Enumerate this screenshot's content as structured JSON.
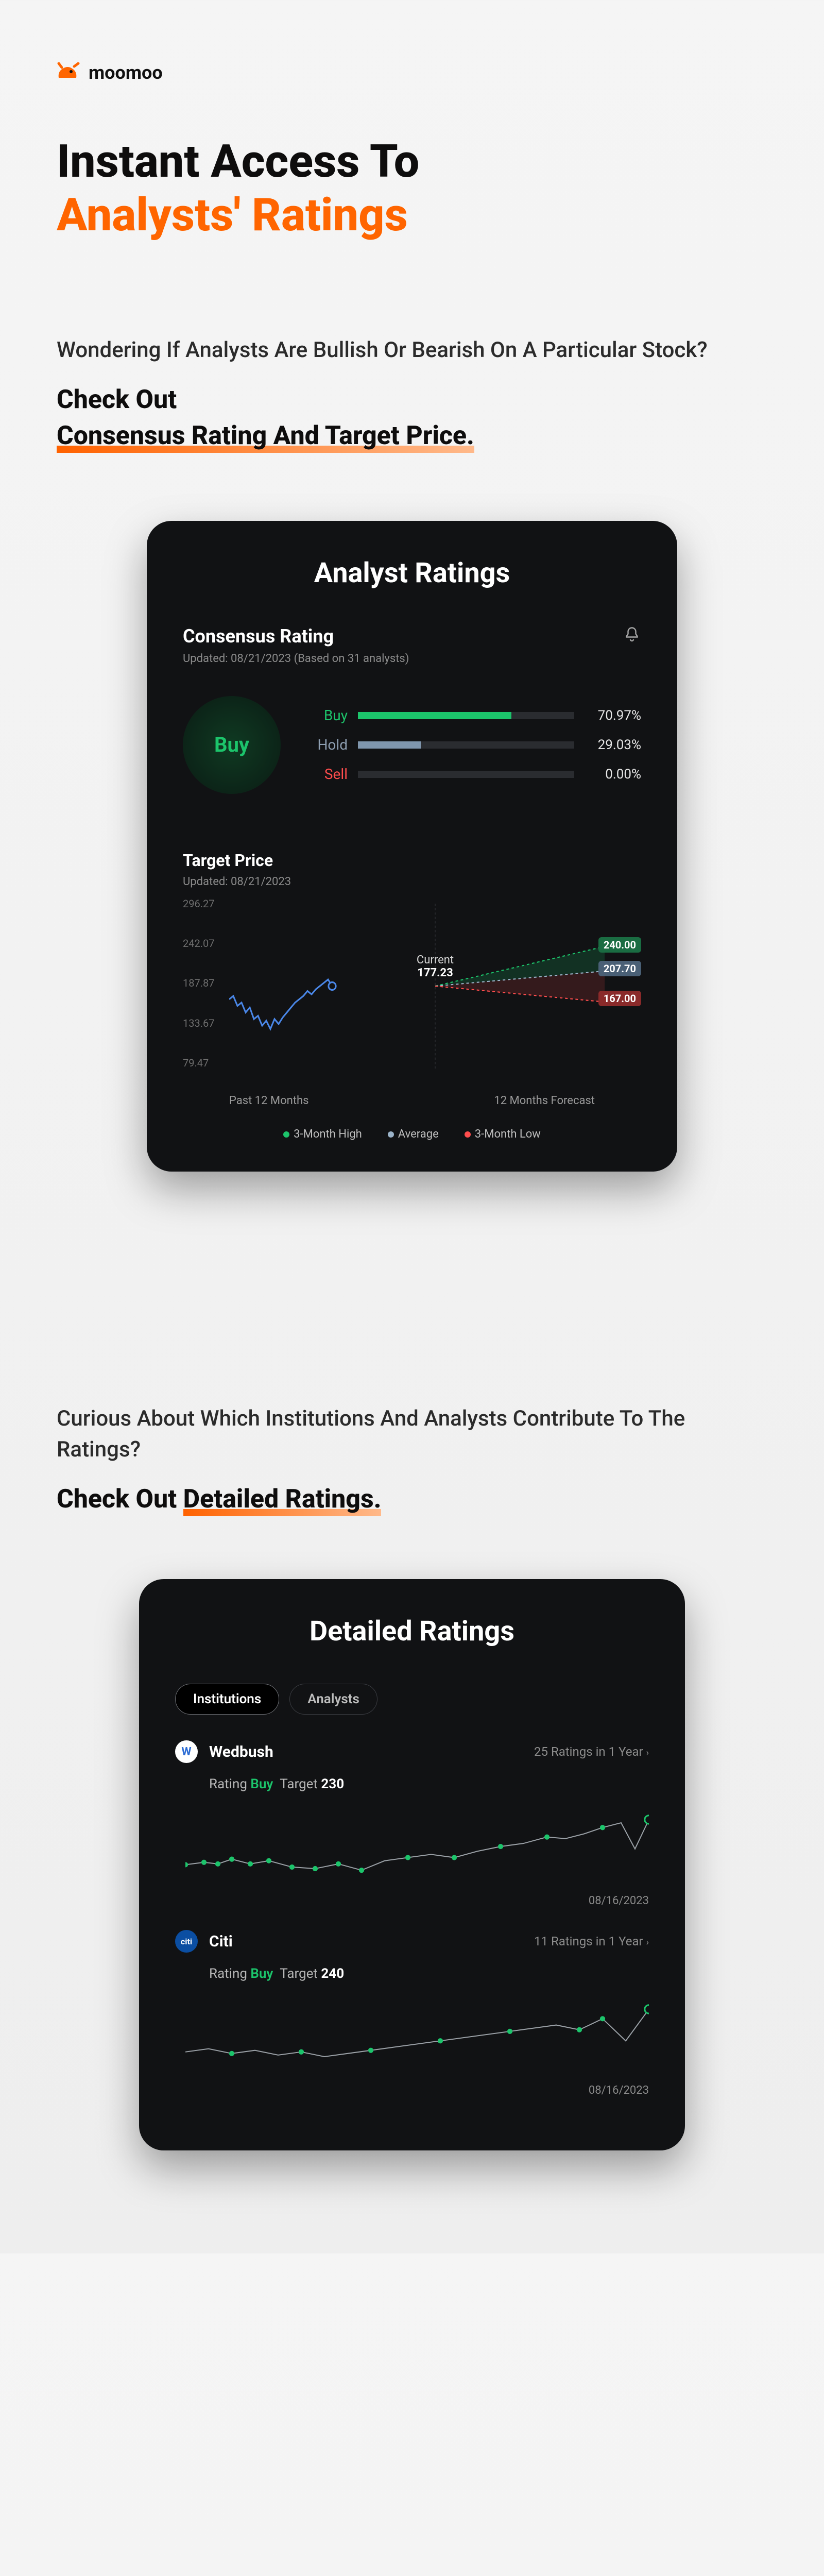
{
  "brand": {
    "name": "moomoo",
    "logo_color": "#ff6500"
  },
  "hero": {
    "line1": "Instant Access To",
    "line2": "Analysts' Ratings",
    "accent_color": "#ff6500"
  },
  "section1": {
    "lead": "Wondering If Analysts Are Bullish Or Bearish On A Particular Stock?",
    "checkout_prefix": "Check Out",
    "checkout_underlined": "Consensus Rating And Target Price."
  },
  "analyst_card": {
    "title": "Analyst Ratings",
    "consensus": {
      "heading": "Consensus Rating",
      "updated": "Updated: 08/21/2023 (Based on  31 analysts)",
      "badge": "Buy",
      "badge_color": "#1cc46b",
      "rows": [
        {
          "label": "Buy",
          "pct": 70.97,
          "pct_str": "70.97%",
          "color": "#1cc46b",
          "label_class": "lbl-buy"
        },
        {
          "label": "Hold",
          "pct": 29.03,
          "pct_str": "29.03%",
          "color": "#7f96ad",
          "label_class": "lbl-hold"
        },
        {
          "label": "Sell",
          "pct": 0.0,
          "pct_str": "0.00%",
          "color": "#ff4d4d",
          "label_class": "lbl-sell"
        }
      ]
    },
    "target": {
      "heading": "Target Price",
      "updated": "Updated: 08/21/2023",
      "y_ticks": [
        "296.27",
        "242.07",
        "187.87",
        "133.67",
        "79.47"
      ],
      "current_label": "Current",
      "current_value": "177.23",
      "forecast": {
        "high": {
          "value": "240.00",
          "color": "#1cc46b",
          "bg": "#1a6c42"
        },
        "average": {
          "value": "207.70",
          "color": "#9bb3c9",
          "bg": "#4a6076"
        },
        "low": {
          "value": "167.00",
          "color": "#ff4d4d",
          "bg": "#8a2a2a"
        }
      },
      "x_labels": {
        "left": "Past 12 Months",
        "right": "12 Months Forecast"
      },
      "legend": [
        {
          "label": "3-Month High",
          "color": "#1cc46b"
        },
        {
          "label": "Average",
          "color": "#9bb3c9"
        },
        {
          "label": "3-Month Low",
          "color": "#ff4d4d"
        }
      ],
      "line_color": "#4a87e8",
      "history_points": [
        [
          0,
          0.58
        ],
        [
          0.02,
          0.56
        ],
        [
          0.04,
          0.62
        ],
        [
          0.06,
          0.6
        ],
        [
          0.08,
          0.66
        ],
        [
          0.1,
          0.63
        ],
        [
          0.12,
          0.7
        ],
        [
          0.14,
          0.68
        ],
        [
          0.16,
          0.74
        ],
        [
          0.18,
          0.71
        ],
        [
          0.2,
          0.76
        ],
        [
          0.22,
          0.7
        ],
        [
          0.24,
          0.73
        ],
        [
          0.26,
          0.69
        ],
        [
          0.28,
          0.66
        ],
        [
          0.3,
          0.63
        ],
        [
          0.32,
          0.6
        ],
        [
          0.34,
          0.58
        ],
        [
          0.36,
          0.56
        ],
        [
          0.38,
          0.53
        ],
        [
          0.4,
          0.55
        ],
        [
          0.42,
          0.52
        ],
        [
          0.44,
          0.5
        ],
        [
          0.46,
          0.48
        ],
        [
          0.48,
          0.46
        ],
        [
          0.5,
          0.5
        ]
      ]
    }
  },
  "section2": {
    "lead": "Curious About Which Institutions And Analysts Contribute To The Ratings?",
    "checkout_prefix": "Check Out ",
    "checkout_underlined": "Detailed Ratings."
  },
  "detailed_card": {
    "title": "Detailed Ratings",
    "tabs": [
      {
        "label": "Institutions",
        "active": true
      },
      {
        "label": "Analysts",
        "active": false
      }
    ],
    "institutions": [
      {
        "name": "Wedbush",
        "logo_bg": "#ffffff",
        "logo_fg": "#2a6bd4",
        "logo_text": "W",
        "count": "25 Ratings in 1 Year",
        "rating_label": "Rating",
        "rating_value": "Buy",
        "target_label": "Target",
        "target_value": "230",
        "date": "08/16/2023",
        "spark_points": [
          [
            0,
            0.75
          ],
          [
            0.04,
            0.72
          ],
          [
            0.07,
            0.74
          ],
          [
            0.1,
            0.68
          ],
          [
            0.14,
            0.74
          ],
          [
            0.18,
            0.7
          ],
          [
            0.23,
            0.78
          ],
          [
            0.28,
            0.8
          ],
          [
            0.33,
            0.74
          ],
          [
            0.38,
            0.82
          ],
          [
            0.43,
            0.7
          ],
          [
            0.48,
            0.66
          ],
          [
            0.53,
            0.62
          ],
          [
            0.58,
            0.66
          ],
          [
            0.63,
            0.58
          ],
          [
            0.68,
            0.52
          ],
          [
            0.73,
            0.48
          ],
          [
            0.78,
            0.4
          ],
          [
            0.82,
            0.42
          ],
          [
            0.86,
            0.36
          ],
          [
            0.9,
            0.28
          ],
          [
            0.94,
            0.22
          ],
          [
            0.97,
            0.55
          ],
          [
            1.0,
            0.18
          ]
        ],
        "spark_dots": [
          0,
          0.04,
          0.07,
          0.1,
          0.14,
          0.18,
          0.23,
          0.28,
          0.33,
          0.38,
          0.48,
          0.58,
          0.68,
          0.78,
          0.9,
          1.0
        ]
      },
      {
        "name": "Citi",
        "logo_bg": "#0b4ea2",
        "logo_fg": "#ffffff",
        "logo_text": "citi",
        "count": "11 Ratings in 1 Year",
        "rating_label": "Rating",
        "rating_value": "Buy",
        "target_label": "Target",
        "target_value": "240",
        "date": "08/16/2023",
        "spark_points": [
          [
            0,
            0.72
          ],
          [
            0.05,
            0.68
          ],
          [
            0.1,
            0.74
          ],
          [
            0.15,
            0.7
          ],
          [
            0.2,
            0.76
          ],
          [
            0.25,
            0.72
          ],
          [
            0.3,
            0.78
          ],
          [
            0.35,
            0.74
          ],
          [
            0.4,
            0.7
          ],
          [
            0.45,
            0.66
          ],
          [
            0.5,
            0.62
          ],
          [
            0.55,
            0.58
          ],
          [
            0.6,
            0.54
          ],
          [
            0.65,
            0.5
          ],
          [
            0.7,
            0.46
          ],
          [
            0.75,
            0.42
          ],
          [
            0.8,
            0.38
          ],
          [
            0.85,
            0.44
          ],
          [
            0.9,
            0.3
          ],
          [
            0.95,
            0.58
          ],
          [
            1.0,
            0.18
          ]
        ],
        "spark_dots": [
          0.1,
          0.25,
          0.4,
          0.55,
          0.7,
          0.85,
          0.9,
          1.0
        ]
      }
    ]
  },
  "colors": {
    "card_bg": "#111214",
    "track_bg": "#2a2c30",
    "spark_line": "#9aa0a6",
    "spark_dot": "#1cc46b"
  }
}
